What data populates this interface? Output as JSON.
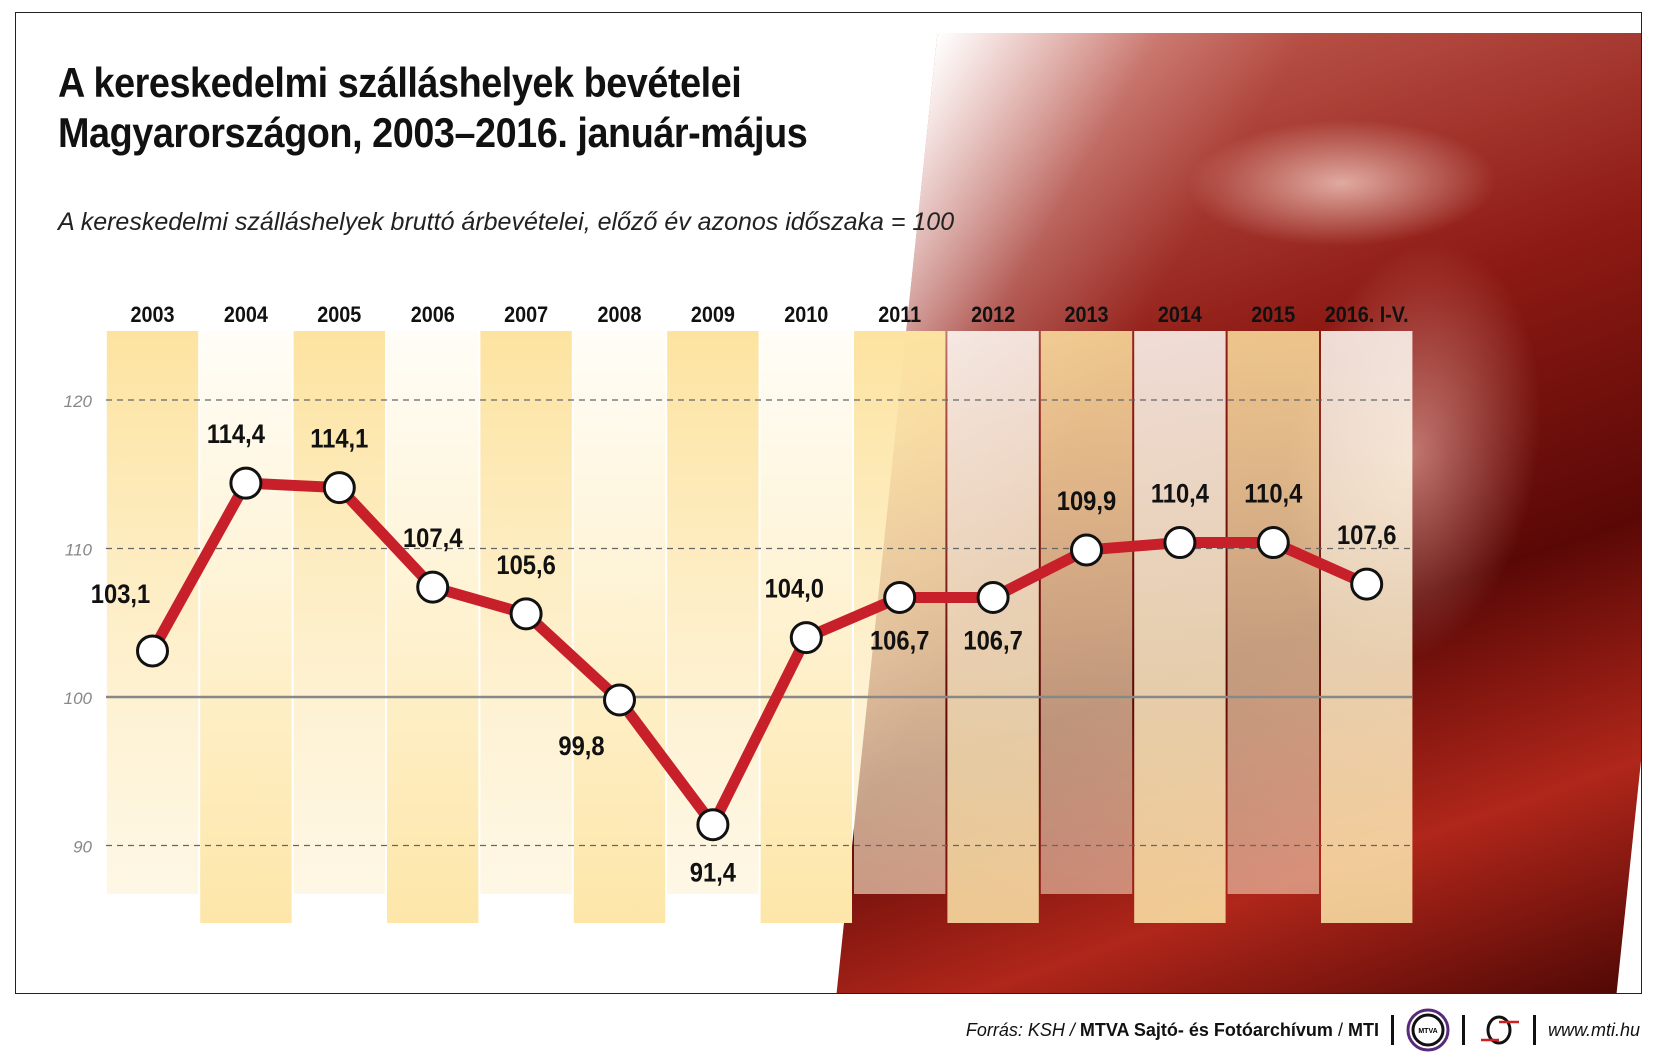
{
  "chart_data": {
    "type": "line",
    "title": "A kereskedelmi szálláshelyek bevételei Magyarországon, 2003–2016. január-május",
    "title_lines": [
      "A kereskedelmi szálláshelyek bevételei",
      "Magyarországon, 2003–2016. január-május"
    ],
    "subtitle": "A kereskedelmi szálláshelyek bruttó árbevételei, előző év azonos időszaka = 100",
    "categories": [
      "2003",
      "2004",
      "2005",
      "2006",
      "2007",
      "2008",
      "2009",
      "2010",
      "2011",
      "2012",
      "2013",
      "2014",
      "2015",
      "2016. I-V."
    ],
    "values": [
      103.1,
      114.4,
      114.1,
      107.4,
      105.6,
      99.8,
      91.4,
      104.0,
      106.7,
      106.7,
      109.9,
      110.4,
      110.4,
      107.6
    ],
    "data_labels": [
      "103,1",
      "114,4",
      "114,1",
      "107,4",
      "105,6",
      "99,8",
      "91,4",
      "104,0",
      "106,7",
      "106,7",
      "109,9",
      "110,4",
      "110,4",
      "107,6"
    ],
    "yticks": [
      "90",
      "100",
      "110",
      "120"
    ],
    "ytick_values": [
      90,
      100,
      110,
      120
    ],
    "ylim": [
      85,
      125
    ],
    "grid": "dashed horizontal, solid at 100",
    "legend": "none",
    "colors": {
      "line": "#c8202a",
      "band": "#fde3a0",
      "marker_fill": "#ffffff",
      "marker_stroke": "#111111"
    }
  },
  "footer": {
    "source_prefix": "Forrás: KSH /",
    "source_bold": "MTVA Sajtó- és Fotóarchívum",
    "sep": "/",
    "mti": "MTI",
    "mtva_logo_text": "MTVA",
    "url": "www.mti.hu"
  }
}
